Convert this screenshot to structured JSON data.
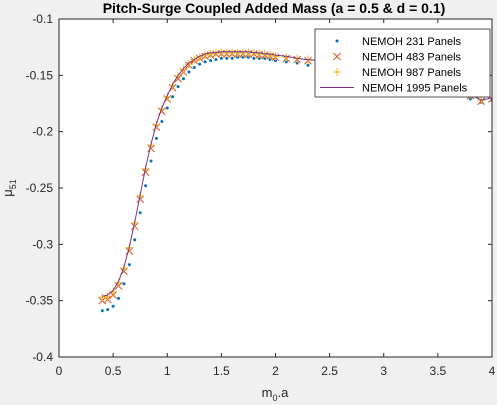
{
  "chart_data": {
    "type": "line",
    "title": "Pitch-Surge Coupled Added Mass (a = 0.5 & d = 0.1)",
    "xlabel": {
      "base": "m",
      "sub": "0",
      "suffix": ".a"
    },
    "ylabel": {
      "base": "μ",
      "sub": "51"
    },
    "xlim": [
      0,
      4
    ],
    "ylim": [
      -0.4,
      -0.1
    ],
    "xticks": [
      "0",
      "0.5",
      "1",
      "1.5",
      "2",
      "2.5",
      "3",
      "3.5",
      "4"
    ],
    "yticks": [
      "-0.1",
      "-0.15",
      "-0.2",
      "-0.25",
      "-0.3",
      "-0.35",
      "-0.4"
    ],
    "legend_position": "top-right",
    "grid": false,
    "x": [
      0.4,
      0.45,
      0.5,
      0.55,
      0.6,
      0.65,
      0.7,
      0.75,
      0.8,
      0.85,
      0.9,
      0.95,
      1.0,
      1.05,
      1.1,
      1.15,
      1.2,
      1.25,
      1.3,
      1.35,
      1.4,
      1.45,
      1.5,
      1.55,
      1.6,
      1.65,
      1.7,
      1.75,
      1.8,
      1.85,
      1.9,
      1.95,
      2.0,
      2.1,
      2.2,
      2.3,
      2.4,
      2.5,
      2.6,
      2.7,
      2.8,
      2.9,
      3.0,
      3.1,
      3.2,
      3.3,
      3.4,
      3.5,
      3.6,
      3.7,
      3.8,
      3.9,
      4.0
    ],
    "series": [
      {
        "name": "NEMOH 231 Panels",
        "marker": "dot",
        "color": "#0072BD",
        "values": [
          -0.359,
          -0.358,
          -0.355,
          -0.348,
          -0.335,
          -0.318,
          -0.296,
          -0.272,
          -0.248,
          -0.226,
          -0.206,
          -0.191,
          -0.179,
          -0.169,
          -0.16,
          -0.153,
          -0.147,
          -0.143,
          -0.14,
          -0.138,
          -0.137,
          -0.136,
          -0.135,
          -0.135,
          -0.135,
          -0.134,
          -0.134,
          -0.134,
          -0.135,
          -0.135,
          -0.135,
          -0.136,
          -0.137,
          -0.138,
          -0.139,
          -0.141,
          -0.142,
          -0.144,
          -0.145,
          -0.147,
          -0.149,
          -0.15,
          -0.152,
          -0.154,
          -0.156,
          -0.158,
          -0.16,
          -0.162,
          -0.165,
          -0.168,
          -0.171,
          -0.174,
          -0.172
        ]
      },
      {
        "name": "NEMOH 483 Panels",
        "marker": "x",
        "color": "#D95319",
        "values": [
          -0.35,
          -0.349,
          -0.345,
          -0.337,
          -0.324,
          -0.306,
          -0.284,
          -0.26,
          -0.236,
          -0.215,
          -0.196,
          -0.182,
          -0.171,
          -0.161,
          -0.153,
          -0.147,
          -0.141,
          -0.137,
          -0.135,
          -0.133,
          -0.132,
          -0.131,
          -0.131,
          -0.131,
          -0.131,
          -0.131,
          -0.131,
          -0.131,
          -0.131,
          -0.132,
          -0.132,
          -0.133,
          -0.134,
          -0.135,
          -0.136,
          -0.137,
          -0.139,
          -0.14,
          -0.142,
          -0.143,
          -0.145,
          -0.147,
          -0.149,
          -0.151,
          -0.153,
          -0.155,
          -0.157,
          -0.159,
          -0.162,
          -0.165,
          -0.168,
          -0.173,
          -0.171
        ]
      },
      {
        "name": "NEMOH 987 Panels",
        "marker": "plus",
        "color": "#EDB120",
        "values": [
          -0.347,
          -0.346,
          -0.342,
          -0.334,
          -0.321,
          -0.303,
          -0.281,
          -0.257,
          -0.233,
          -0.212,
          -0.194,
          -0.18,
          -0.169,
          -0.159,
          -0.151,
          -0.145,
          -0.14,
          -0.136,
          -0.134,
          -0.132,
          -0.131,
          -0.13,
          -0.13,
          -0.13,
          -0.13,
          -0.13,
          -0.13,
          -0.13,
          -0.13,
          -0.131,
          -0.131,
          -0.132,
          -0.133,
          -0.134,
          -0.135,
          -0.136,
          -0.138,
          -0.139,
          -0.141,
          -0.142,
          -0.144,
          -0.146,
          -0.148,
          -0.15,
          -0.152,
          -0.154,
          -0.156,
          -0.158,
          -0.161,
          -0.164,
          -0.167,
          -0.172,
          -0.17
        ]
      },
      {
        "name": "NEMOH 1995 Panels",
        "marker": "line",
        "color": "#7E2F8E",
        "values": [
          -0.346,
          -0.345,
          -0.341,
          -0.333,
          -0.32,
          -0.302,
          -0.28,
          -0.256,
          -0.232,
          -0.211,
          -0.193,
          -0.179,
          -0.168,
          -0.158,
          -0.15,
          -0.144,
          -0.139,
          -0.136,
          -0.133,
          -0.131,
          -0.13,
          -0.13,
          -0.129,
          -0.129,
          -0.129,
          -0.129,
          -0.129,
          -0.129,
          -0.13,
          -0.13,
          -0.131,
          -0.131,
          -0.132,
          -0.133,
          -0.135,
          -0.136,
          -0.137,
          -0.139,
          -0.14,
          -0.142,
          -0.144,
          -0.146,
          -0.147,
          -0.149,
          -0.151,
          -0.153,
          -0.156,
          -0.158,
          -0.161,
          -0.164,
          -0.167,
          -0.172,
          -0.17
        ]
      }
    ]
  }
}
